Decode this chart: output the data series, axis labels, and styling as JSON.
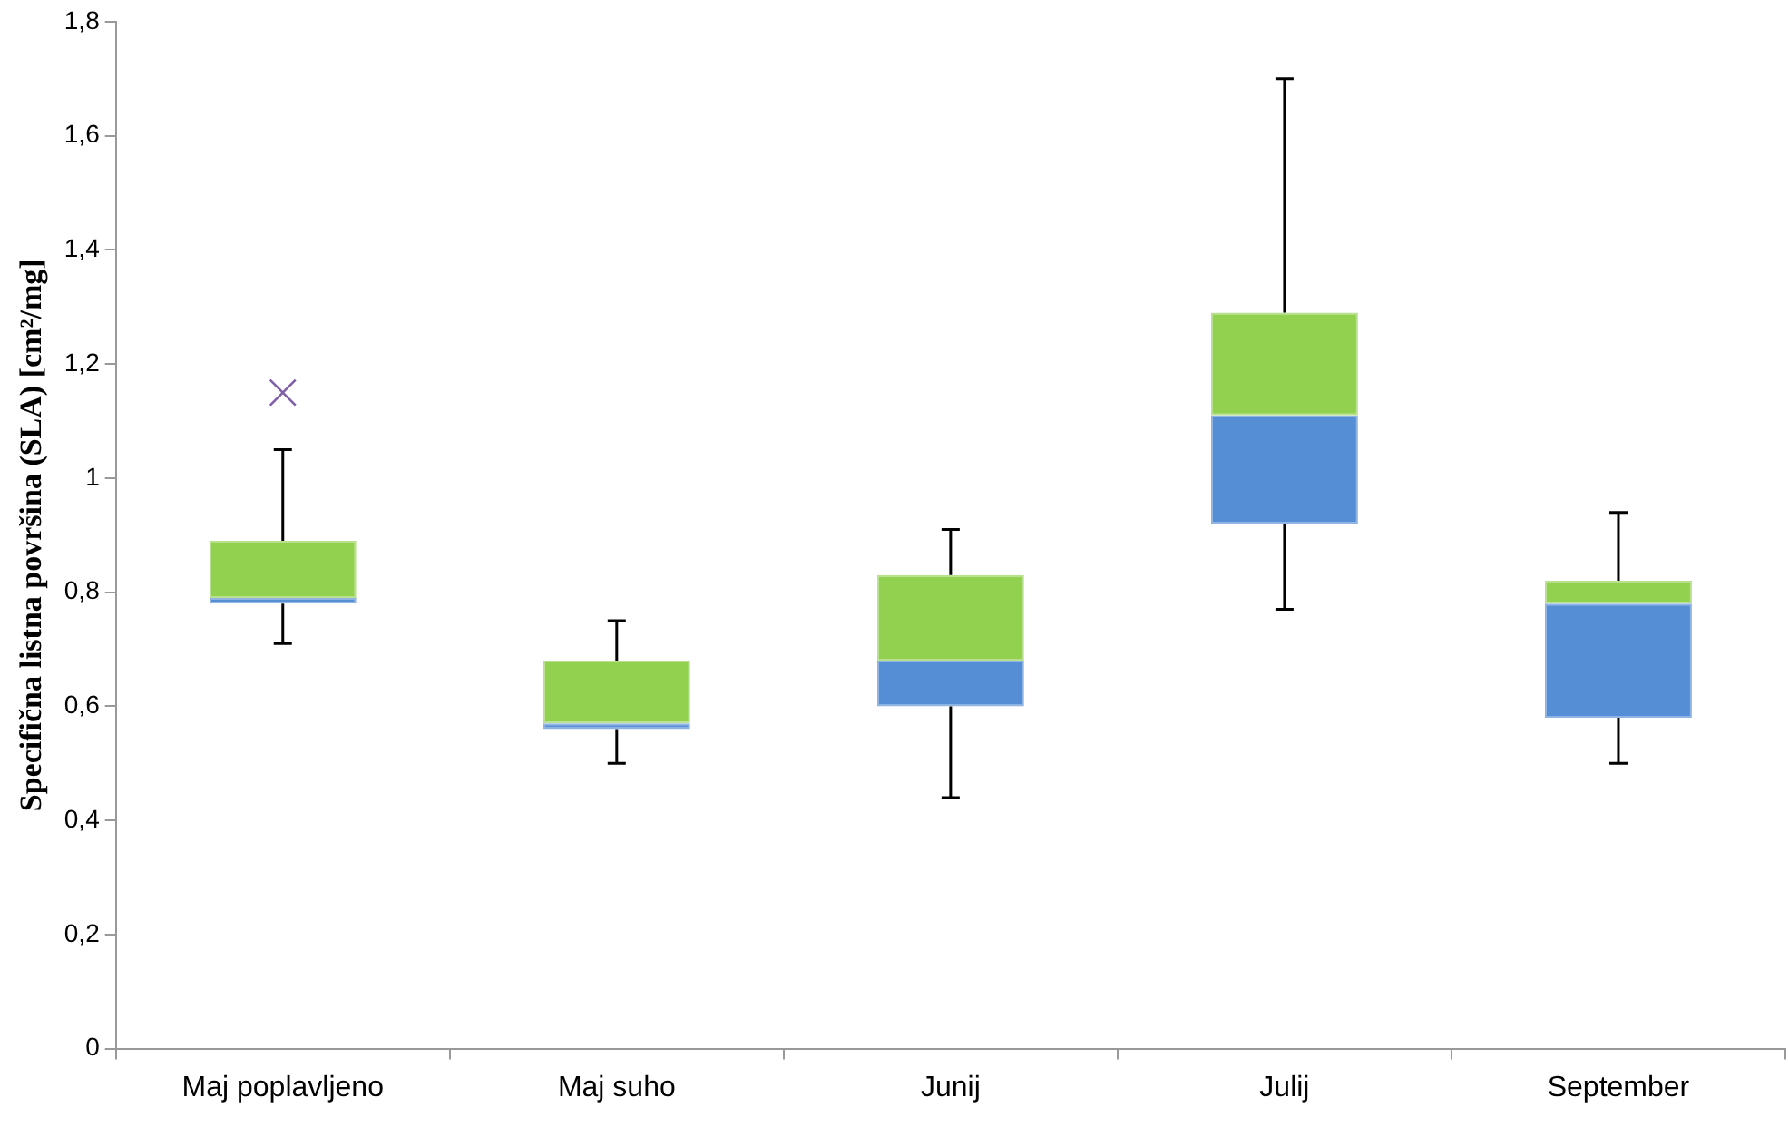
{
  "chart_data": {
    "type": "box",
    "ylabel": "Specifična listna površina (SLA) [cm²/mg]",
    "categories": [
      "Maj poplavljeno",
      "Maj suho",
      "Junij",
      "Julij",
      "September"
    ],
    "series": [
      {
        "color": "#92d050",
        "colors": [
          "#558ed5",
          "#558ed5",
          "#558ed5",
          "#558ed5",
          "#558ed5"
        ],
        "boxes": [
          {
            "low": 0.71,
            "q1": 0.78,
            "median": 0.79,
            "q3": 0.89,
            "high": 1.05,
            "outliers": [
              1.15
            ]
          },
          {
            "low": 0.5,
            "q1": 0.56,
            "median": 0.57,
            "q3": 0.68,
            "high": 0.75
          },
          {
            "low": 0.44,
            "q1": 0.6,
            "median": 0.68,
            "q3": 0.83,
            "high": 0.91
          },
          {
            "low": 0.77,
            "q1": 0.92,
            "median": 1.11,
            "q3": 1.29,
            "high": 1.7
          },
          {
            "low": 0.5,
            "q1": 0.58,
            "median": 0.78,
            "q3": 0.82,
            "high": 0.94
          }
        ]
      }
    ],
    "ylim": [
      0,
      1.8
    ],
    "yticks": [
      0,
      {
        "value": 0.2,
        "label": "0,2"
      },
      {
        "value": 0.4,
        "label": "0,4"
      },
      {
        "value": 0.6,
        "label": "0,6"
      },
      {
        "value": 0.8,
        "label": "0,8"
      },
      1,
      {
        "value": 1.2,
        "label": "1,2"
      },
      {
        "value": 1.4,
        "label": "1,4"
      },
      {
        "value": 1.6,
        "label": "1,6"
      },
      {
        "value": 1.8,
        "label": "1,8"
      }
    ],
    "grid": false,
    "legend": false
  }
}
